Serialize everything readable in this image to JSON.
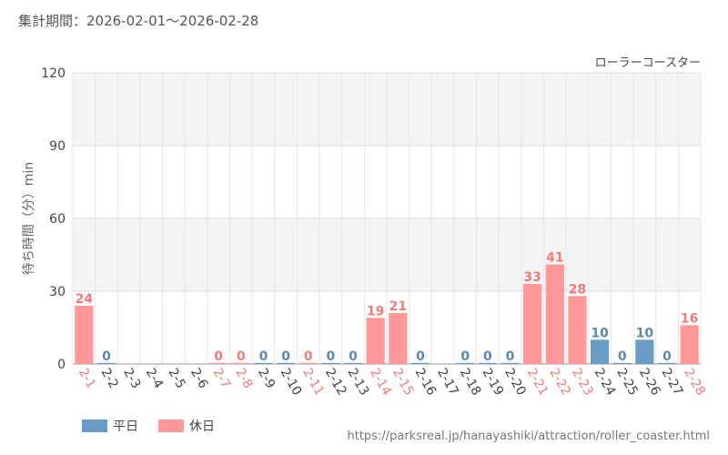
{
  "header": {
    "period": "集計期間：2026-02-01～2026-02-28"
  },
  "footer": {
    "source": "https://parksreal.jp/hanayashiki/attraction/roller_coaster.html"
  },
  "colors": {
    "weekday": "#6a9cc6",
    "holiday": "#ff9999",
    "weekday_label": "#5b88b0",
    "holiday_label": "#f07b7b"
  },
  "chart_data": {
    "type": "bar",
    "title": "ローラーコースター",
    "ylabel": "待ち時間（分）min",
    "ylim": [
      0,
      120
    ],
    "yticks": [
      0,
      30,
      60,
      90,
      120
    ],
    "categories": [
      "2-1",
      "2-2",
      "2-3",
      "2-4",
      "2-5",
      "2-6",
      "2-7",
      "2-8",
      "2-9",
      "2-10",
      "2-11",
      "2-12",
      "2-13",
      "2-14",
      "2-15",
      "2-16",
      "2-17",
      "2-18",
      "2-19",
      "2-20",
      "2-21",
      "2-22",
      "2-23",
      "2-24",
      "2-25",
      "2-26",
      "2-27",
      "2-28"
    ],
    "values": [
      24,
      0,
      null,
      null,
      null,
      null,
      0,
      0,
      0,
      0,
      0,
      0,
      0,
      19,
      21,
      0,
      null,
      0,
      0,
      0,
      33,
      41,
      28,
      10,
      0,
      10,
      0,
      16
    ],
    "day_type": [
      "holiday",
      "weekday",
      "weekday",
      "weekday",
      "weekday",
      "weekday",
      "holiday",
      "holiday",
      "weekday",
      "weekday",
      "holiday",
      "weekday",
      "weekday",
      "holiday",
      "holiday",
      "weekday",
      "weekday",
      "weekday",
      "weekday",
      "weekday",
      "holiday",
      "holiday",
      "holiday",
      "weekday",
      "weekday",
      "weekday",
      "weekday",
      "holiday"
    ],
    "legend": [
      {
        "key": "weekday",
        "label": "平日"
      },
      {
        "key": "holiday",
        "label": "休日"
      }
    ]
  }
}
